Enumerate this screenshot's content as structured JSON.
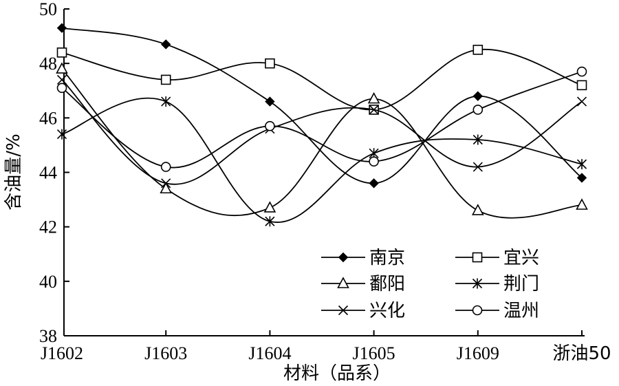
{
  "chart_data": {
    "type": "line",
    "xlabel": "材料（品系）",
    "ylabel": "含油量/%",
    "categories": [
      "J1602",
      "J1603",
      "J1604",
      "J1605",
      "J1609",
      "浙油50"
    ],
    "ylim": [
      38,
      50
    ],
    "yticks": [
      38,
      40,
      42,
      44,
      46,
      48,
      50
    ],
    "grid": false,
    "legend_position": "bottom-right",
    "series": [
      {
        "name": "南京",
        "marker": "filled-diamond",
        "values": [
          49.3,
          48.7,
          46.6,
          43.6,
          46.8,
          43.8
        ]
      },
      {
        "name": "宜兴",
        "marker": "open-square",
        "values": [
          48.4,
          47.4,
          48.0,
          46.3,
          48.5,
          47.2
        ]
      },
      {
        "name": "鄱阳",
        "marker": "open-triangle",
        "values": [
          47.8,
          43.4,
          42.7,
          46.7,
          42.6,
          42.8
        ]
      },
      {
        "name": "荆门",
        "marker": "asterisk",
        "values": [
          45.4,
          46.6,
          42.2,
          44.7,
          45.2,
          44.3
        ]
      },
      {
        "name": "兴化",
        "marker": "x",
        "values": [
          47.4,
          43.6,
          45.6,
          46.3,
          44.2,
          46.6
        ]
      },
      {
        "name": "温州",
        "marker": "open-circle",
        "values": [
          47.1,
          44.2,
          45.7,
          44.4,
          46.3,
          47.7
        ]
      }
    ]
  }
}
